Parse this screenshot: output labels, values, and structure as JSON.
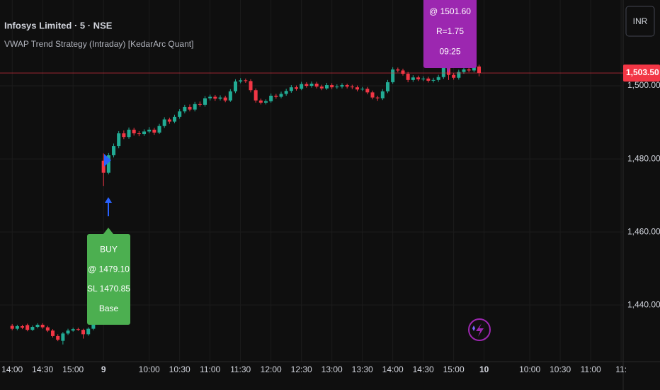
{
  "header": {
    "symbol": "Infosys Limited · 5 · NSE",
    "indicator": "VWAP Trend Strategy (Intraday) [KedarArc Quant]",
    "currency": "INR"
  },
  "chart_data": {
    "type": "candlestick",
    "up_color": "#22ab94",
    "down_color": "#f23645",
    "grid": true,
    "xlim": [
      -2.4,
      120.4
    ],
    "ylim": [
      1424.5,
      1523.5
    ],
    "xticks": [
      {
        "value": 0,
        "label": "14:00"
      },
      {
        "value": 6,
        "label": "14:30"
      },
      {
        "value": 12,
        "label": "15:00"
      },
      {
        "value": 18,
        "label": "9"
      },
      {
        "value": 27,
        "label": "10:00"
      },
      {
        "value": 33,
        "label": "10:30"
      },
      {
        "value": 39,
        "label": "11:00"
      },
      {
        "value": 45,
        "label": "11:30"
      },
      {
        "value": 51,
        "label": "12:00"
      },
      {
        "value": 57,
        "label": "12:30"
      },
      {
        "value": 63,
        "label": "13:00"
      },
      {
        "value": 69,
        "label": "13:30"
      },
      {
        "value": 75,
        "label": "14:00"
      },
      {
        "value": 81,
        "label": "14:30"
      },
      {
        "value": 87,
        "label": "15:00"
      },
      {
        "value": 93,
        "label": "10"
      },
      {
        "value": 102,
        "label": "10:00"
      },
      {
        "value": 108,
        "label": "10:30"
      },
      {
        "value": 114,
        "label": "11:00"
      },
      {
        "value": 120,
        "label": "11:"
      }
    ],
    "yticks": [
      {
        "value": 1440,
        "label": "1,440.00"
      },
      {
        "value": 1460,
        "label": "1,460.00"
      },
      {
        "value": 1480,
        "label": "1,480.00"
      },
      {
        "value": 1500,
        "label": "1,500.00"
      }
    ],
    "last_price": {
      "value": 1503.5,
      "label": "1,503.50"
    },
    "x": [
      0,
      1,
      2,
      3,
      4,
      5,
      6,
      7,
      8,
      9,
      10,
      11,
      12,
      13,
      14,
      15,
      16,
      17,
      18,
      19,
      20,
      21,
      22,
      23,
      24,
      25,
      26,
      27,
      28,
      29,
      30,
      31,
      32,
      33,
      34,
      35,
      36,
      37,
      38,
      39,
      40,
      41,
      42,
      43,
      44,
      45,
      46,
      47,
      48,
      49,
      50,
      51,
      52,
      53,
      54,
      55,
      56,
      57,
      58,
      59,
      60,
      61,
      62,
      63,
      64,
      65,
      66,
      67,
      68,
      69,
      70,
      71,
      72,
      73,
      74,
      75,
      76,
      77,
      78,
      79,
      80,
      81,
      82,
      83,
      84,
      85,
      86,
      87,
      88,
      89,
      90,
      91,
      92
    ],
    "open": [
      1434.3,
      1433.5,
      1434.2,
      1434.5,
      1433.2,
      1434.0,
      1434.6,
      1433.9,
      1433.0,
      1431.5,
      1430.2,
      1432.2,
      1433.0,
      1433.4,
      1433.2,
      1432.0,
      1433.5,
      1435.0,
      1479.5,
      1476.2,
      1481.0,
      1483.5,
      1487.0,
      1486.0,
      1488.0,
      1487.0,
      1486.8,
      1487.5,
      1488.0,
      1487.2,
      1489.0,
      1490.8,
      1490.2,
      1491.5,
      1493.0,
      1494.2,
      1493.5,
      1495.0,
      1494.8,
      1496.6,
      1497.0,
      1496.5,
      1496.8,
      1496.0,
      1498.5,
      1501.2,
      1501.5,
      1501.3,
      1498.8,
      1496.0,
      1495.4,
      1495.8,
      1497.3,
      1497.0,
      1497.8,
      1498.6,
      1499.6,
      1499.2,
      1500.5,
      1500.0,
      1500.6,
      1499.8,
      1499.3,
      1500.2,
      1499.6,
      1499.8,
      1500.2,
      1499.8,
      1499.6,
      1499.0,
      1499.2,
      1498.2,
      1496.8,
      1496.6,
      1498.5,
      1501.0,
      1504.5,
      1504.2,
      1503.3,
      1501.6,
      1502.3,
      1501.8,
      1502.0,
      1501.4,
      1501.6,
      1502.4,
      1505.0,
      1503.0,
      1502.2,
      1503.8,
      1504.5,
      1504.2,
      1505.3
    ],
    "close": [
      1433.5,
      1434.2,
      1433.8,
      1433.2,
      1434.0,
      1434.6,
      1433.9,
      1433.0,
      1431.5,
      1430.5,
      1432.2,
      1433.0,
      1433.4,
      1433.2,
      1432.0,
      1433.5,
      1435.0,
      1436.3,
      1476.2,
      1481.0,
      1483.5,
      1487.0,
      1486.0,
      1488.0,
      1487.0,
      1486.8,
      1487.5,
      1488.0,
      1487.2,
      1489.0,
      1490.8,
      1490.2,
      1491.5,
      1493.0,
      1494.2,
      1493.5,
      1495.0,
      1494.8,
      1496.6,
      1497.0,
      1496.5,
      1496.8,
      1496.0,
      1498.5,
      1501.2,
      1501.5,
      1501.3,
      1498.8,
      1496.0,
      1495.4,
      1495.8,
      1497.3,
      1497.0,
      1497.8,
      1498.6,
      1499.6,
      1499.2,
      1500.5,
      1500.0,
      1500.6,
      1499.8,
      1499.3,
      1500.2,
      1499.6,
      1499.8,
      1500.2,
      1499.8,
      1499.6,
      1499.0,
      1499.2,
      1498.2,
      1496.8,
      1496.6,
      1498.5,
      1501.0,
      1504.5,
      1504.2,
      1503.3,
      1501.6,
      1502.3,
      1501.8,
      1502.0,
      1501.4,
      1501.6,
      1502.4,
      1505.0,
      1503.0,
      1502.2,
      1503.8,
      1504.5,
      1504.2,
      1505.3,
      1503.5
    ],
    "high": [
      1434.8,
      1434.6,
      1434.6,
      1434.9,
      1434.4,
      1435.0,
      1435.0,
      1434.3,
      1433.4,
      1432.0,
      1432.6,
      1433.5,
      1433.8,
      1433.8,
      1433.5,
      1433.9,
      1435.4,
      1436.8,
      1481.5,
      1481.6,
      1484.2,
      1487.6,
      1487.8,
      1488.6,
      1488.5,
      1487.6,
      1488.1,
      1488.7,
      1488.5,
      1489.6,
      1491.4,
      1491.3,
      1492.1,
      1493.6,
      1494.8,
      1494.9,
      1495.6,
      1495.7,
      1497.2,
      1497.6,
      1497.5,
      1497.4,
      1497.3,
      1499.1,
      1501.8,
      1502.1,
      1502.0,
      1501.8,
      1499.3,
      1496.5,
      1496.3,
      1497.9,
      1497.8,
      1498.4,
      1499.2,
      1500.2,
      1500.1,
      1501.1,
      1501.0,
      1501.2,
      1501.1,
      1500.3,
      1500.8,
      1500.7,
      1500.4,
      1500.7,
      1500.6,
      1500.3,
      1500.1,
      1499.7,
      1499.7,
      1498.7,
      1497.3,
      1499.1,
      1501.6,
      1505.1,
      1505.0,
      1504.7,
      1503.8,
      1502.9,
      1502.8,
      1502.6,
      1502.5,
      1502.2,
      1503.0,
      1505.6,
      1505.5,
      1503.5,
      1504.4,
      1505.1,
      1505.0,
      1505.9,
      1505.8
    ],
    "low": [
      1433.1,
      1433.1,
      1433.4,
      1432.8,
      1432.9,
      1433.6,
      1433.5,
      1432.6,
      1431.1,
      1430.1,
      1429.2,
      1431.8,
      1432.7,
      1432.9,
      1430.8,
      1431.6,
      1433.1,
      1434.7,
      1472.6,
      1475.8,
      1480.4,
      1482.9,
      1485.4,
      1485.5,
      1486.4,
      1486.2,
      1486.3,
      1487.0,
      1486.6,
      1486.8,
      1488.5,
      1489.6,
      1489.8,
      1491.0,
      1492.5,
      1493.0,
      1493.0,
      1494.3,
      1494.3,
      1496.0,
      1495.9,
      1496.0,
      1495.5,
      1495.6,
      1498.0,
      1500.7,
      1500.8,
      1498.2,
      1495.4,
      1494.9,
      1494.9,
      1495.4,
      1496.5,
      1496.6,
      1497.3,
      1498.1,
      1498.7,
      1498.8,
      1499.5,
      1499.5,
      1499.3,
      1498.8,
      1498.9,
      1499.1,
      1499.2,
      1499.3,
      1499.3,
      1499.1,
      1498.5,
      1498.6,
      1497.7,
      1496.3,
      1495.9,
      1496.1,
      1498.0,
      1500.6,
      1503.7,
      1502.8,
      1501.0,
      1501.1,
      1501.3,
      1501.3,
      1500.9,
      1500.9,
      1501.1,
      1501.9,
      1501.6,
      1501.7,
      1501.7,
      1503.3,
      1503.7,
      1503.7,
      1502.6
    ],
    "annotations": [
      {
        "name": "buy",
        "color": "#4caf50",
        "lines": [
          "BUY",
          "@ 1479.10",
          "SL 1470.85",
          "Base"
        ]
      },
      {
        "name": "exit",
        "color": "#9c27b0",
        "lines": [
          "@ 1501.60",
          "R=1.75",
          "09:25"
        ]
      }
    ]
  }
}
